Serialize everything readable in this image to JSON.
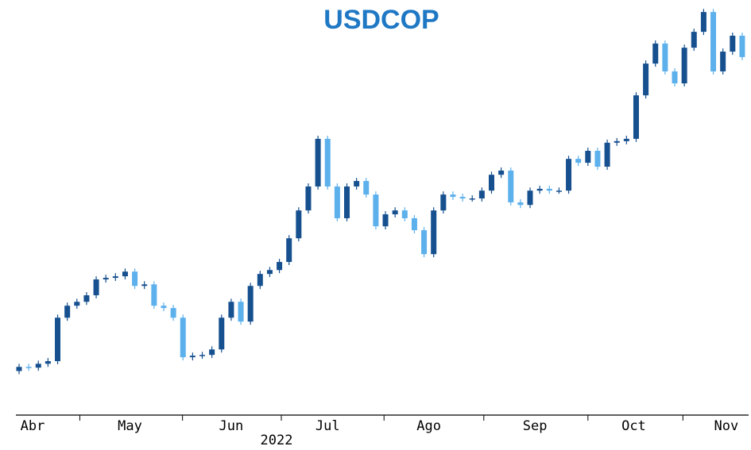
{
  "chart_data": {
    "type": "candlestick",
    "title": "USDCOP",
    "xlabel": "2022",
    "x": [
      0,
      2,
      4,
      6,
      8,
      10,
      12,
      14,
      16,
      18,
      20,
      22,
      24,
      26,
      28,
      30,
      32,
      34,
      36,
      38,
      40,
      42,
      44,
      46,
      48,
      50,
      52,
      54,
      56,
      58,
      60,
      62,
      64,
      66,
      68,
      70,
      72,
      74,
      76,
      78,
      80,
      82,
      84,
      86,
      88,
      90,
      92,
      94,
      96,
      98,
      100,
      102,
      104,
      106,
      108,
      110,
      112,
      114,
      116,
      118,
      120,
      122,
      124,
      126,
      128,
      130,
      132,
      134,
      136,
      138,
      140,
      142,
      144,
      146,
      148,
      150
    ],
    "open": [
      3690,
      3706,
      3703,
      3718,
      3728,
      3895,
      3941,
      3956,
      3981,
      4042,
      4048,
      4054,
      4072,
      4017,
      4023,
      3941,
      3932,
      3895,
      3743,
      3749,
      3752,
      3773,
      3895,
      3956,
      3880,
      4017,
      4063,
      4078,
      4109,
      4200,
      4307,
      4399,
      4582,
      4399,
      4277,
      4399,
      4420,
      4368,
      4246,
      4292,
      4307,
      4277,
      4231,
      4139,
      4307,
      4368,
      4359,
      4353,
      4353,
      4383,
      4444,
      4460,
      4338,
      4328,
      4383,
      4390,
      4383,
      4383,
      4505,
      4490,
      4536,
      4475,
      4567,
      4573,
      4582,
      4749,
      4871,
      4948,
      4841,
      4795,
      4932,
      4993,
      5069,
      4841,
      4917,
      4978
    ],
    "high": [
      3718,
      3718,
      3730,
      3740,
      3907,
      3953,
      3968,
      3993,
      4054,
      4060,
      4066,
      4084,
      4084,
      4035,
      4035,
      3953,
      3944,
      3907,
      3761,
      3764,
      3785,
      3907,
      3968,
      3968,
      4029,
      4075,
      4090,
      4121,
      4212,
      4319,
      4411,
      4594,
      4594,
      4411,
      4411,
      4432,
      4432,
      4380,
      4304,
      4319,
      4319,
      4289,
      4243,
      4319,
      4380,
      4380,
      4371,
      4365,
      4395,
      4456,
      4472,
      4472,
      4350,
      4395,
      4402,
      4402,
      4395,
      4517,
      4517,
      4548,
      4548,
      4579,
      4585,
      4594,
      4761,
      4883,
      4960,
      4960,
      4853,
      4944,
      5005,
      5081,
      5081,
      4929,
      4990,
      4990
    ],
    "low": [
      3678,
      3691,
      3691,
      3706,
      3716,
      3883,
      3929,
      3944,
      3969,
      4030,
      4036,
      4042,
      4005,
      4005,
      3929,
      3920,
      3883,
      3731,
      3731,
      3737,
      3740,
      3761,
      3883,
      3868,
      3868,
      4005,
      4051,
      4066,
      4097,
      4188,
      4295,
      4387,
      4387,
      4265,
      4265,
      4387,
      4356,
      4234,
      4234,
      4280,
      4265,
      4219,
      4127,
      4127,
      4295,
      4347,
      4341,
      4341,
      4341,
      4371,
      4432,
      4326,
      4316,
      4316,
      4371,
      4371,
      4371,
      4371,
      4478,
      4478,
      4463,
      4463,
      4555,
      4561,
      4570,
      4737,
      4859,
      4829,
      4783,
      4783,
      4920,
      4981,
      4829,
      4829,
      4905,
      4884
    ],
    "close": [
      3706,
      3703,
      3718,
      3728,
      3895,
      3941,
      3956,
      3981,
      4042,
      4048,
      4054,
      4072,
      4017,
      4023,
      3941,
      3932,
      3895,
      3743,
      3749,
      3752,
      3773,
      3895,
      3956,
      3880,
      4017,
      4063,
      4078,
      4109,
      4200,
      4307,
      4399,
      4582,
      4399,
      4277,
      4399,
      4420,
      4368,
      4246,
      4292,
      4307,
      4277,
      4231,
      4139,
      4307,
      4368,
      4359,
      4353,
      4353,
      4383,
      4444,
      4460,
      4338,
      4328,
      4383,
      4390,
      4383,
      4383,
      4505,
      4490,
      4536,
      4475,
      4567,
      4573,
      4582,
      4749,
      4871,
      4948,
      4841,
      4795,
      4932,
      4993,
      5069,
      4841,
      4917,
      4978,
      4896
    ],
    "up_color": "#16508f",
    "down_color": "#5cb0ec",
    "xlim": [
      0,
      151
    ],
    "ylim": [
      3530,
      5100
    ],
    "xticks": [
      {
        "value": 2.8,
        "label": "Abr"
      },
      {
        "value": 23,
        "label": "May"
      },
      {
        "value": 44,
        "label": "Jun"
      },
      {
        "value": 64,
        "label": "Jul"
      },
      {
        "value": 85,
        "label": "Ago"
      },
      {
        "value": 107,
        "label": "Sep"
      },
      {
        "value": 127.5,
        "label": "Oct"
      },
      {
        "value": 146.7,
        "label": "Nov"
      }
    ],
    "xminor": [
      12.6,
      33.9,
      54.4,
      75.7,
      96.4,
      118,
      137.7
    ]
  }
}
